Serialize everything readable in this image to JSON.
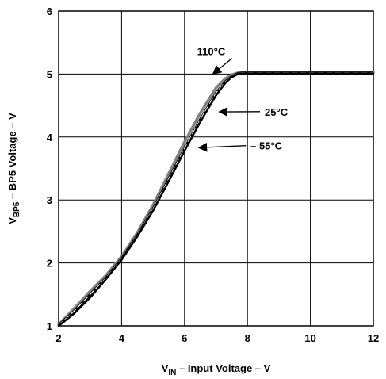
{
  "chart_data": {
    "type": "line",
    "xlabel_main": "V",
    "xlabel_sub": "IN",
    "xlabel_rest": " – Input Voltage – V",
    "ylabel_main": "V",
    "ylabel_sub": "BP5",
    "ylabel_rest": " – BP5 Voltage – V",
    "xlim": [
      2,
      12
    ],
    "ylim": [
      1,
      6
    ],
    "xticks": [
      2,
      4,
      6,
      8,
      10,
      12
    ],
    "yticks": [
      1,
      2,
      3,
      4,
      5,
      6
    ],
    "grid": true,
    "series": [
      {
        "name": "110°C",
        "color": "#808080",
        "style": "solid",
        "x": [
          2.0,
          2.5,
          3.0,
          3.5,
          4.0,
          4.5,
          5.0,
          5.5,
          6.0,
          6.5,
          7.0,
          7.3,
          7.5,
          7.7,
          7.8,
          8.0,
          10.0,
          12.0
        ],
        "y": [
          1.02,
          1.28,
          1.55,
          1.8,
          2.1,
          2.48,
          2.92,
          3.42,
          3.92,
          4.38,
          4.78,
          4.93,
          4.99,
          5.02,
          5.03,
          5.03,
          5.03,
          5.03
        ]
      },
      {
        "name": "25°C",
        "color": "#000000",
        "style": "dashed",
        "x": [
          2.0,
          2.5,
          3.0,
          3.5,
          4.0,
          4.5,
          5.0,
          5.5,
          6.0,
          6.5,
          7.0,
          7.3,
          7.5,
          7.7,
          7.8,
          8.0,
          10.0,
          12.0
        ],
        "y": [
          1.01,
          1.24,
          1.5,
          1.76,
          2.07,
          2.44,
          2.86,
          3.34,
          3.82,
          4.28,
          4.7,
          4.88,
          4.96,
          5.01,
          5.02,
          5.02,
          5.02,
          5.02
        ]
      },
      {
        "name": "– 55°C",
        "color": "#000000",
        "style": "solid",
        "x": [
          2.0,
          2.5,
          3.0,
          3.5,
          4.0,
          4.5,
          5.0,
          5.5,
          6.0,
          6.5,
          7.0,
          7.3,
          7.5,
          7.7,
          7.8,
          8.0,
          10.0,
          12.0
        ],
        "y": [
          1.0,
          1.2,
          1.45,
          1.74,
          2.05,
          2.42,
          2.83,
          3.3,
          3.78,
          4.24,
          4.66,
          4.86,
          4.95,
          5.0,
          5.01,
          5.01,
          5.01,
          5.01
        ]
      }
    ],
    "annotations": [
      {
        "text": "110°C",
        "x": 6.4,
        "y": 5.3,
        "arrow_to_x": 6.9,
        "arrow_to_y": 5.0
      },
      {
        "text": "25°C",
        "x": 8.55,
        "y": 4.34,
        "arrow_to_x": 7.1,
        "arrow_to_y": 4.4
      },
      {
        "text": "– 55°C",
        "x": 8.1,
        "y": 3.8,
        "arrow_to_x": 6.45,
        "arrow_to_y": 3.83
      }
    ]
  }
}
